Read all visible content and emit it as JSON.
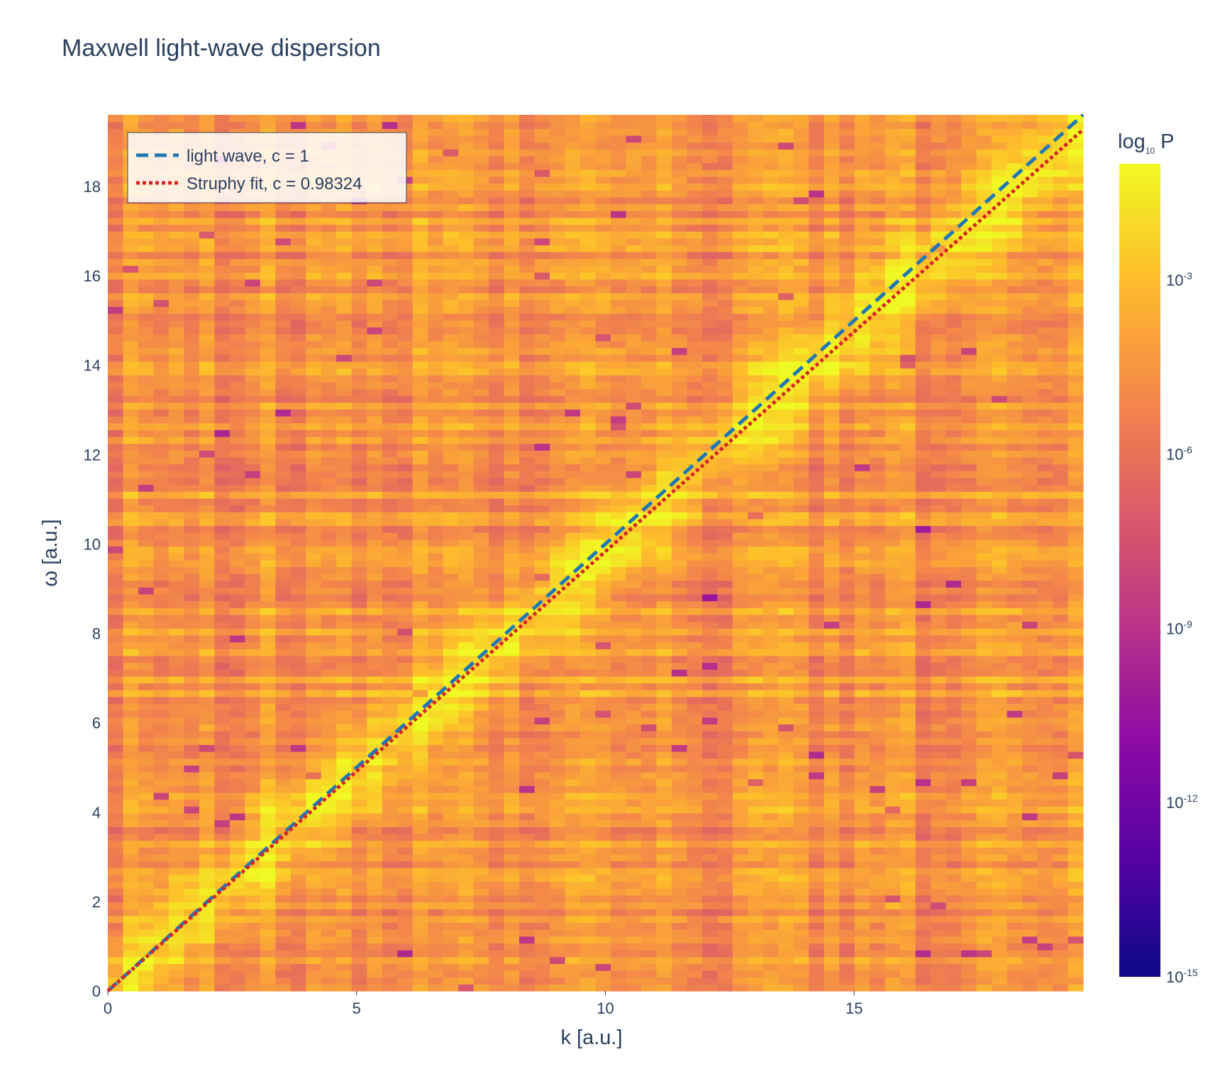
{
  "chart_data": {
    "type": "heatmap",
    "title": "Maxwell light-wave dispersion",
    "xlabel": "k [a.u.]",
    "ylabel": "ω [a.u.]",
    "xlim": [
      0,
      19.6
    ],
    "ylim": [
      0,
      19.6
    ],
    "x_ticks": [
      0,
      5,
      10,
      15
    ],
    "y_ticks": [
      0,
      2,
      4,
      6,
      8,
      10,
      12,
      14,
      16,
      18
    ],
    "colorbar": {
      "title": "log",
      "title_subscript": "10",
      "title_suffix": " P",
      "range_log10": [
        -15,
        -1
      ],
      "ticks": [
        {
          "base": "10",
          "exp": "-3",
          "value": -3
        },
        {
          "base": "10",
          "exp": "-6",
          "value": -6
        },
        {
          "base": "10",
          "exp": "-9",
          "value": -9
        },
        {
          "base": "10",
          "exp": "-12",
          "value": -12
        },
        {
          "base": "10",
          "exp": "-15",
          "value": -15
        }
      ],
      "colorscale": "plasma"
    },
    "heatmap": {
      "k_bins": 64,
      "omega_bins": 128,
      "description_of_values": "log10 power; maximum (~1e-1.5) along omega = c*k, background ~1e-4 to 1e-7 with sparse minima near 1e-10"
    },
    "series": [
      {
        "name": "light wave, c = 1",
        "type": "line",
        "dash": "dash",
        "color": "#1f77b4",
        "x": [
          0,
          19.6
        ],
        "y": [
          0,
          19.6
        ]
      },
      {
        "name": "Struphy fit, c = 0.98324",
        "type": "line",
        "dash": "dot",
        "color": "#d62728",
        "x": [
          0,
          19.6
        ],
        "y": [
          0,
          19.2715
        ]
      }
    ],
    "legend_position": "top-left"
  }
}
